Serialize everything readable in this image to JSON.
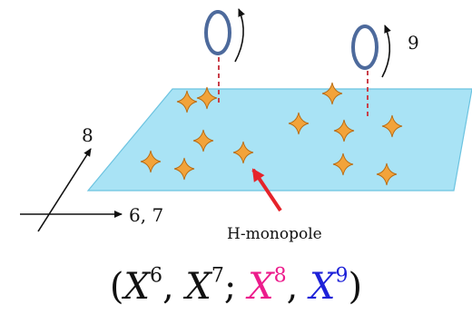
{
  "labels": {
    "axis_8": "8",
    "axis_67": "6, 7",
    "axis_9": "9",
    "monopole": "H-monopole"
  },
  "formula": {
    "open": "(",
    "x6_base": "X",
    "x6_sup": "6",
    "sep1": ", ",
    "x7_base": "X",
    "x7_sup": "7",
    "sep2": "; ",
    "x8_base": "X",
    "x8_sup": "8",
    "sep3": ", ",
    "x9_base": "X",
    "x9_sup": "9",
    "close": ")"
  },
  "colors": {
    "plane_fill": "#a9e3f5",
    "plane_stroke": "#6cc3e0",
    "star_fill": "#f2a33a",
    "star_stroke": "#b86b12",
    "loop_stroke": "#4d6a9c",
    "dash": "#c9404a",
    "arrow_red": "#e5232a",
    "x8_color": "#ec1c8c",
    "x9_color": "#1e22d8"
  },
  "icons": {
    "star": "four-point-star-icon",
    "loop": "wilson-loop-icon",
    "rotation": "rotation-arrow-icon"
  }
}
